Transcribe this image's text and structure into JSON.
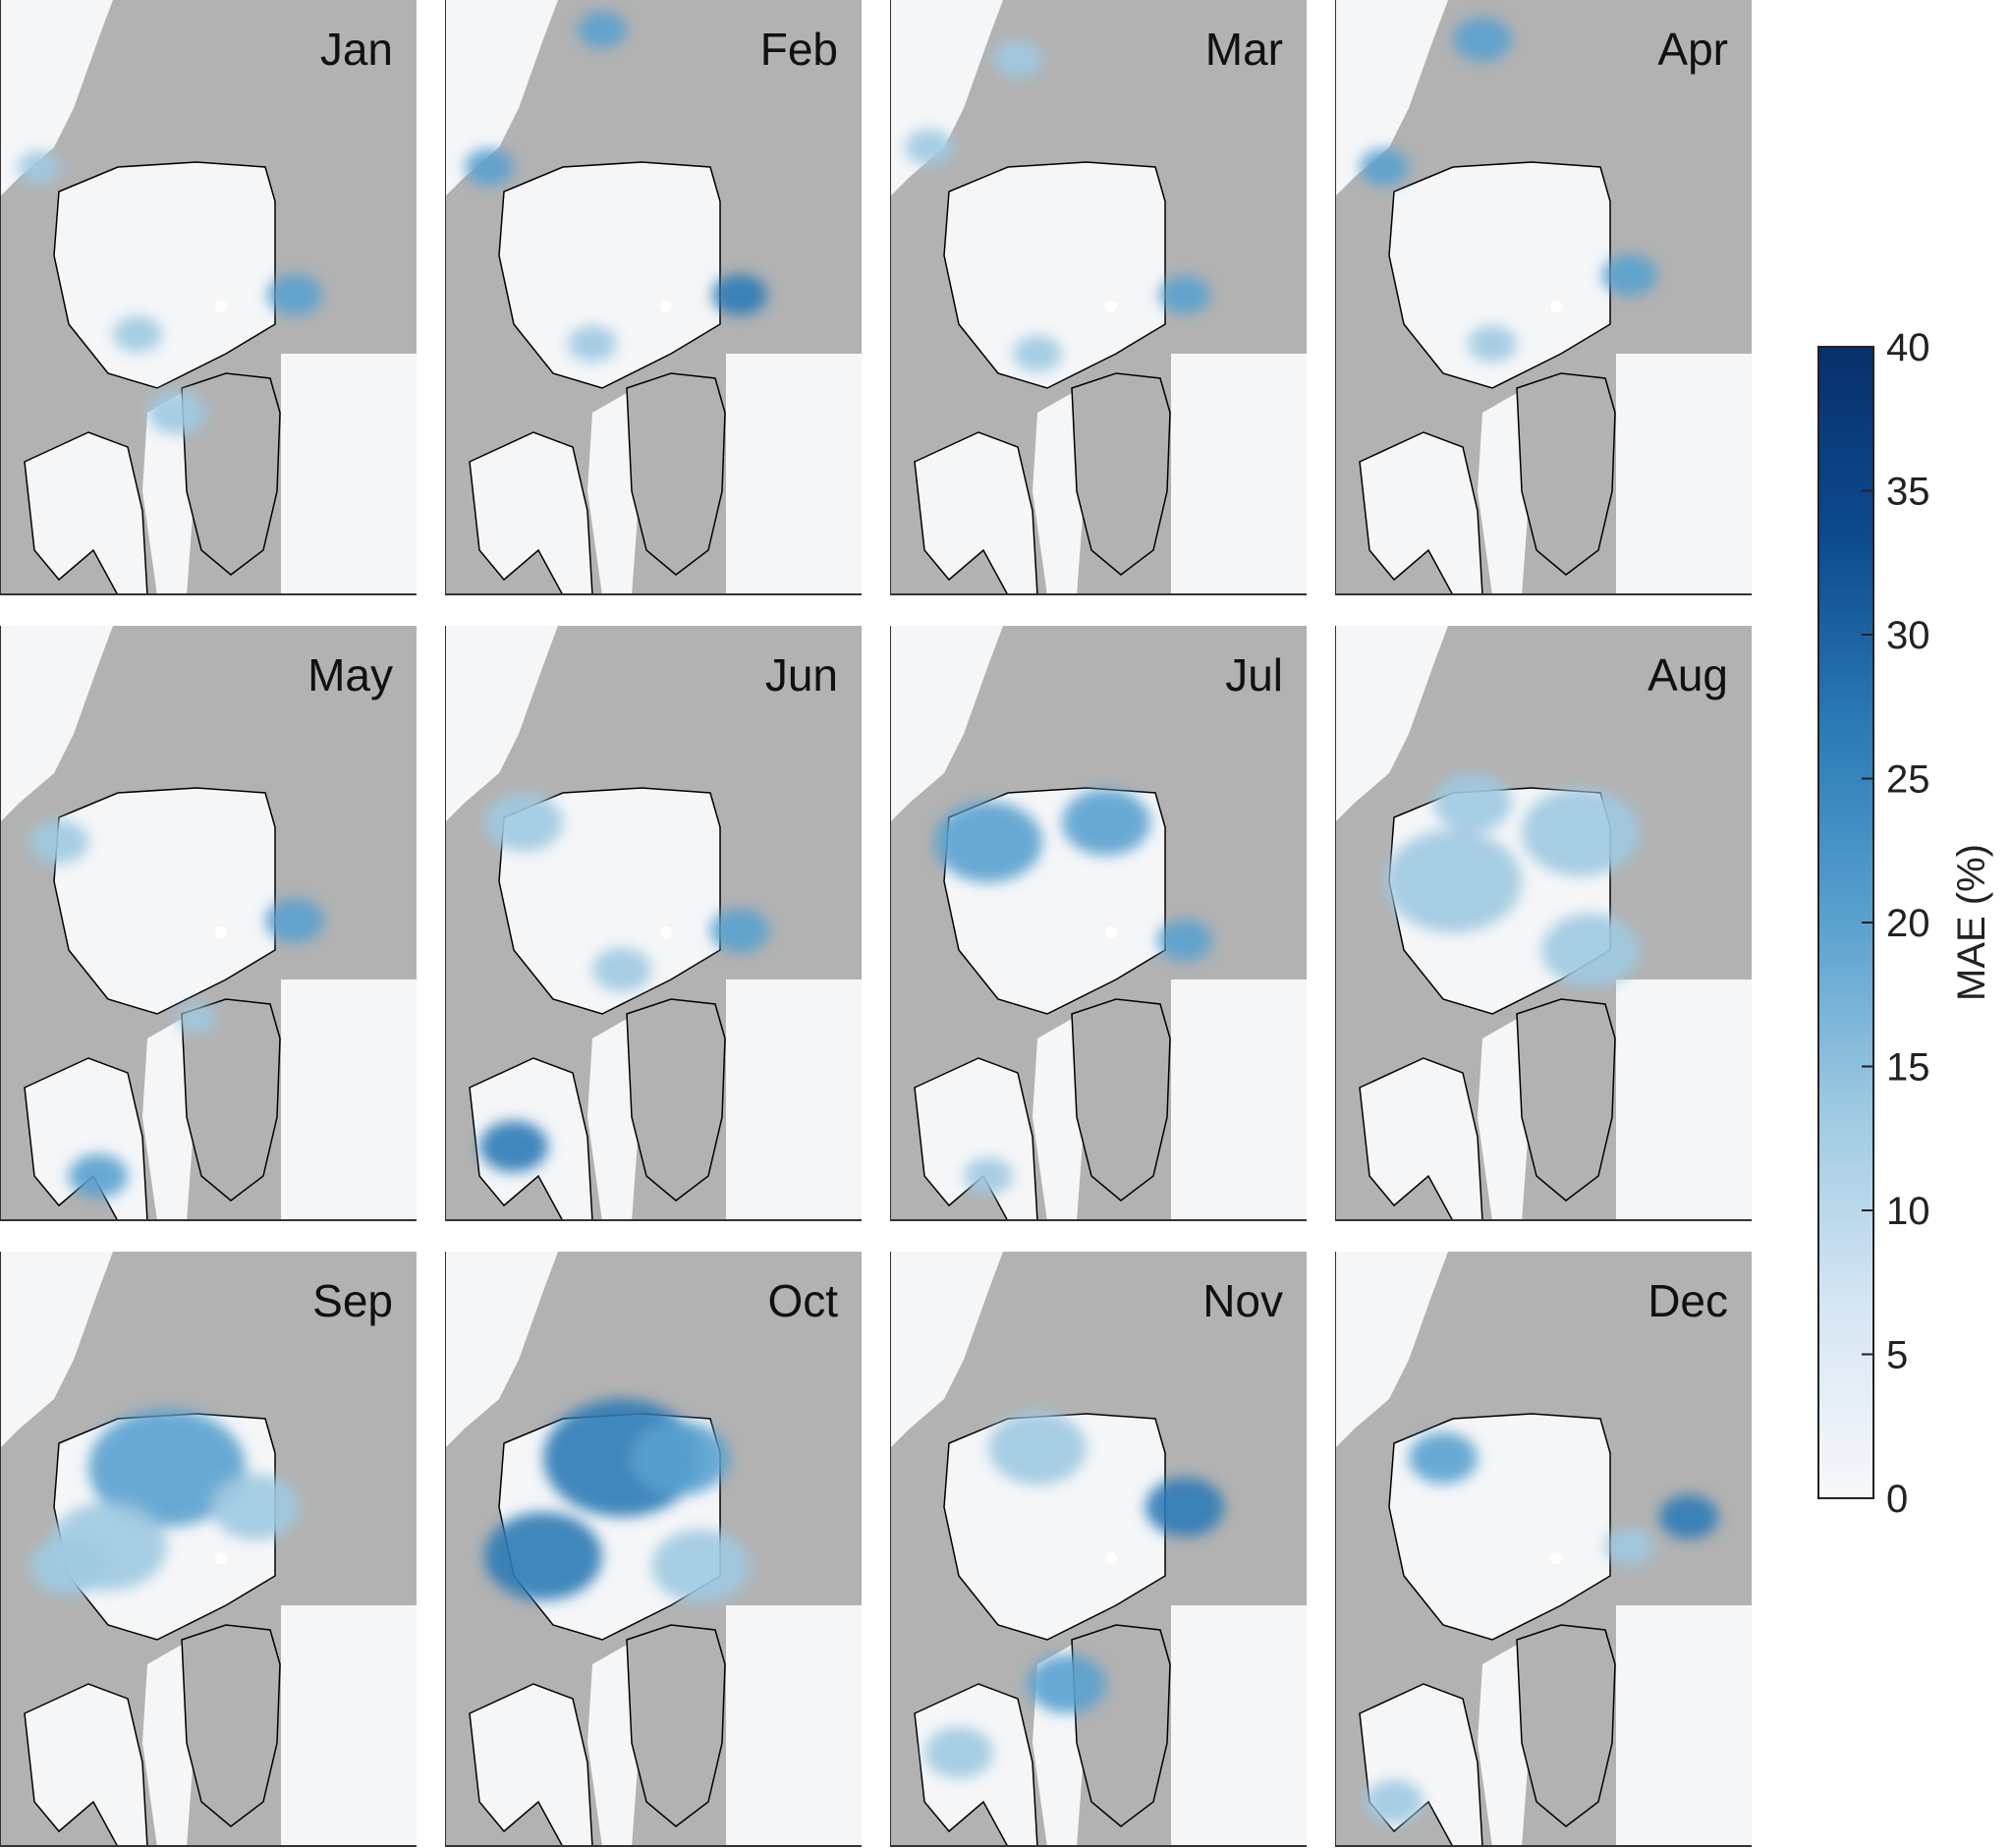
{
  "figure": {
    "colorbar_label": "MAE (%)"
  },
  "chart_data": {
    "type": "heatmap",
    "panels": [
      "Jan",
      "Feb",
      "Mar",
      "Apr",
      "May",
      "Jun",
      "Jul",
      "Aug",
      "Sep",
      "Oct",
      "Nov",
      "Dec"
    ],
    "grid": {
      "rows": 3,
      "cols": 4
    },
    "colorbar": {
      "label": "MAE (%)",
      "range": [
        0,
        40
      ],
      "ticks": [
        0,
        5,
        10,
        15,
        20,
        25,
        30,
        35,
        40
      ],
      "colormap": "white-to-dark-blue",
      "colors": [
        "#f7f8fa",
        "#d6e6f4",
        "#9fcae1",
        "#5aa1cf",
        "#2c7bb6",
        "#0d4a8f",
        "#08306b"
      ]
    },
    "style": {
      "land_color": "#b2b2b2",
      "ocean_color": "#f5f6f8",
      "coast_color": "#000000"
    }
  }
}
